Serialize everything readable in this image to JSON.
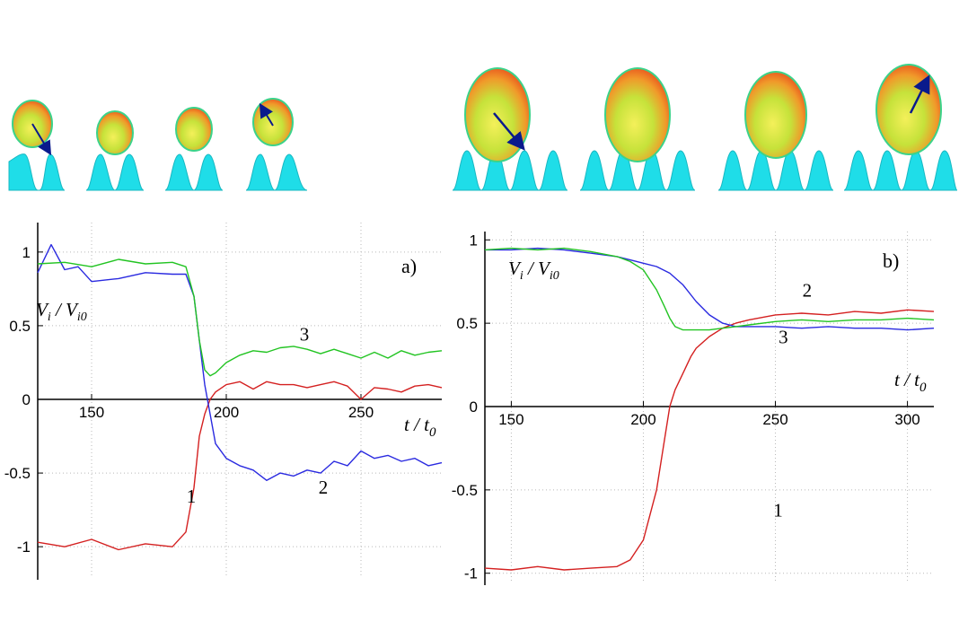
{
  "colors": {
    "series1": "#d42020",
    "series2": "#2a2ae0",
    "series3": "#22c422",
    "substrate": "#1fdde8",
    "grid": "#b9b9b9",
    "arrow": "#0a1a8c"
  },
  "snapshots": {
    "a": {
      "count": 4,
      "arrows": [
        true,
        false,
        false,
        true
      ]
    },
    "b": {
      "count": 4,
      "arrows": [
        true,
        false,
        false,
        true
      ]
    }
  },
  "chart_data": [
    {
      "type": "line",
      "panel_label": "a)",
      "ylabel_main": "V",
      "ylabel_sub1": "i",
      "ylabel_mid": " / V",
      "ylabel_sub2": "i0",
      "xlabel_main": "t",
      "xlabel_mid": " / t",
      "xlabel_sub": "0",
      "xlim": [
        130,
        280
      ],
      "ylim": [
        -1.2,
        1.2
      ],
      "xticks": [
        "150",
        "200",
        "250"
      ],
      "xtick_values": [
        150,
        200,
        250
      ],
      "yticks": [
        "1",
        "0.5",
        "0",
        "-0.5",
        "-1"
      ],
      "ytick_values": [
        1,
        0.5,
        0,
        -0.5,
        -1
      ],
      "grid": true,
      "series_labels": [
        {
          "text": "1",
          "x": 187,
          "y": -0.7
        },
        {
          "text": "2",
          "x": 236,
          "y": -0.64
        },
        {
          "text": "3",
          "x": 229,
          "y": 0.4
        }
      ],
      "series": [
        {
          "id": "1",
          "color": "series1",
          "x": [
            130,
            140,
            150,
            160,
            170,
            180,
            185,
            188,
            190,
            192,
            194,
            196,
            200,
            205,
            210,
            215,
            220,
            225,
            230,
            235,
            240,
            245,
            250,
            255,
            260,
            265,
            270,
            275,
            280
          ],
          "y": [
            -0.97,
            -1.0,
            -0.95,
            -1.02,
            -0.98,
            -1.0,
            -0.9,
            -0.6,
            -0.25,
            -0.1,
            0.0,
            0.05,
            0.1,
            0.12,
            0.07,
            0.12,
            0.1,
            0.1,
            0.08,
            0.1,
            0.12,
            0.09,
            0.0,
            0.08,
            0.07,
            0.05,
            0.09,
            0.1,
            0.08
          ]
        },
        {
          "id": "2",
          "color": "series2",
          "x": [
            130,
            135,
            140,
            145,
            150,
            160,
            170,
            180,
            185,
            188,
            190,
            192,
            194,
            196,
            200,
            205,
            210,
            215,
            220,
            225,
            230,
            235,
            240,
            245,
            250,
            255,
            260,
            265,
            270,
            275,
            280
          ],
          "y": [
            0.86,
            1.05,
            0.88,
            0.9,
            0.8,
            0.82,
            0.86,
            0.85,
            0.85,
            0.7,
            0.4,
            0.1,
            -0.1,
            -0.3,
            -0.4,
            -0.45,
            -0.48,
            -0.55,
            -0.5,
            -0.52,
            -0.48,
            -0.5,
            -0.42,
            -0.45,
            -0.35,
            -0.4,
            -0.38,
            -0.42,
            -0.4,
            -0.45,
            -0.43
          ]
        },
        {
          "id": "3",
          "color": "series3",
          "x": [
            130,
            140,
            150,
            160,
            170,
            180,
            185,
            188,
            190,
            192,
            194,
            196,
            200,
            205,
            210,
            215,
            220,
            225,
            230,
            235,
            240,
            245,
            250,
            255,
            260,
            265,
            270,
            275,
            280
          ],
          "y": [
            0.92,
            0.93,
            0.9,
            0.95,
            0.92,
            0.93,
            0.9,
            0.7,
            0.4,
            0.2,
            0.16,
            0.18,
            0.25,
            0.3,
            0.33,
            0.32,
            0.35,
            0.36,
            0.34,
            0.31,
            0.34,
            0.31,
            0.28,
            0.32,
            0.28,
            0.33,
            0.3,
            0.32,
            0.33
          ]
        }
      ]
    },
    {
      "type": "line",
      "panel_label": "b)",
      "ylabel_main": "V",
      "ylabel_sub1": "i",
      "ylabel_mid": " / V",
      "ylabel_sub2": "i0",
      "xlabel_main": "t",
      "xlabel_mid": " / t",
      "xlabel_sub": "0",
      "xlim": [
        140,
        310
      ],
      "ylim": [
        -1.05,
        1.05
      ],
      "xticks": [
        "150",
        "200",
        "250",
        "300"
      ],
      "xtick_values": [
        150,
        200,
        250,
        300
      ],
      "yticks": [
        "1",
        "0.5",
        "0",
        "-0.5",
        "-1"
      ],
      "ytick_values": [
        1,
        0.5,
        0,
        -0.5,
        -1
      ],
      "grid": true,
      "series_labels": [
        {
          "text": "1",
          "x": 251,
          "y": -0.66
        },
        {
          "text": "2",
          "x": 262,
          "y": 0.66
        },
        {
          "text": "3",
          "x": 253,
          "y": 0.38
        }
      ],
      "series": [
        {
          "id": "1",
          "color": "series1",
          "x": [
            140,
            150,
            160,
            170,
            180,
            190,
            195,
            200,
            205,
            208,
            210,
            212,
            215,
            218,
            220,
            225,
            230,
            235,
            240,
            250,
            260,
            270,
            280,
            290,
            300,
            310
          ],
          "y": [
            -0.97,
            -0.98,
            -0.96,
            -0.98,
            -0.97,
            -0.96,
            -0.92,
            -0.8,
            -0.5,
            -0.2,
            0.0,
            0.1,
            0.2,
            0.3,
            0.35,
            0.42,
            0.47,
            0.5,
            0.52,
            0.55,
            0.56,
            0.55,
            0.57,
            0.56,
            0.58,
            0.57
          ]
        },
        {
          "id": "2",
          "color": "series2",
          "x": [
            140,
            150,
            160,
            170,
            180,
            190,
            195,
            200,
            205,
            210,
            215,
            220,
            225,
            230,
            235,
            240,
            250,
            260,
            270,
            280,
            290,
            300,
            310
          ],
          "y": [
            0.94,
            0.94,
            0.95,
            0.94,
            0.92,
            0.9,
            0.88,
            0.86,
            0.84,
            0.8,
            0.73,
            0.63,
            0.55,
            0.5,
            0.48,
            0.48,
            0.48,
            0.47,
            0.48,
            0.47,
            0.47,
            0.46,
            0.47
          ]
        },
        {
          "id": "3",
          "color": "series3",
          "x": [
            140,
            150,
            160,
            170,
            180,
            190,
            195,
            200,
            205,
            208,
            210,
            212,
            215,
            220,
            225,
            230,
            235,
            240,
            250,
            260,
            270,
            280,
            290,
            300,
            310
          ],
          "y": [
            0.94,
            0.95,
            0.94,
            0.95,
            0.93,
            0.9,
            0.87,
            0.82,
            0.7,
            0.6,
            0.53,
            0.48,
            0.46,
            0.46,
            0.46,
            0.47,
            0.48,
            0.49,
            0.51,
            0.52,
            0.51,
            0.52,
            0.52,
            0.53,
            0.52
          ]
        }
      ]
    }
  ]
}
